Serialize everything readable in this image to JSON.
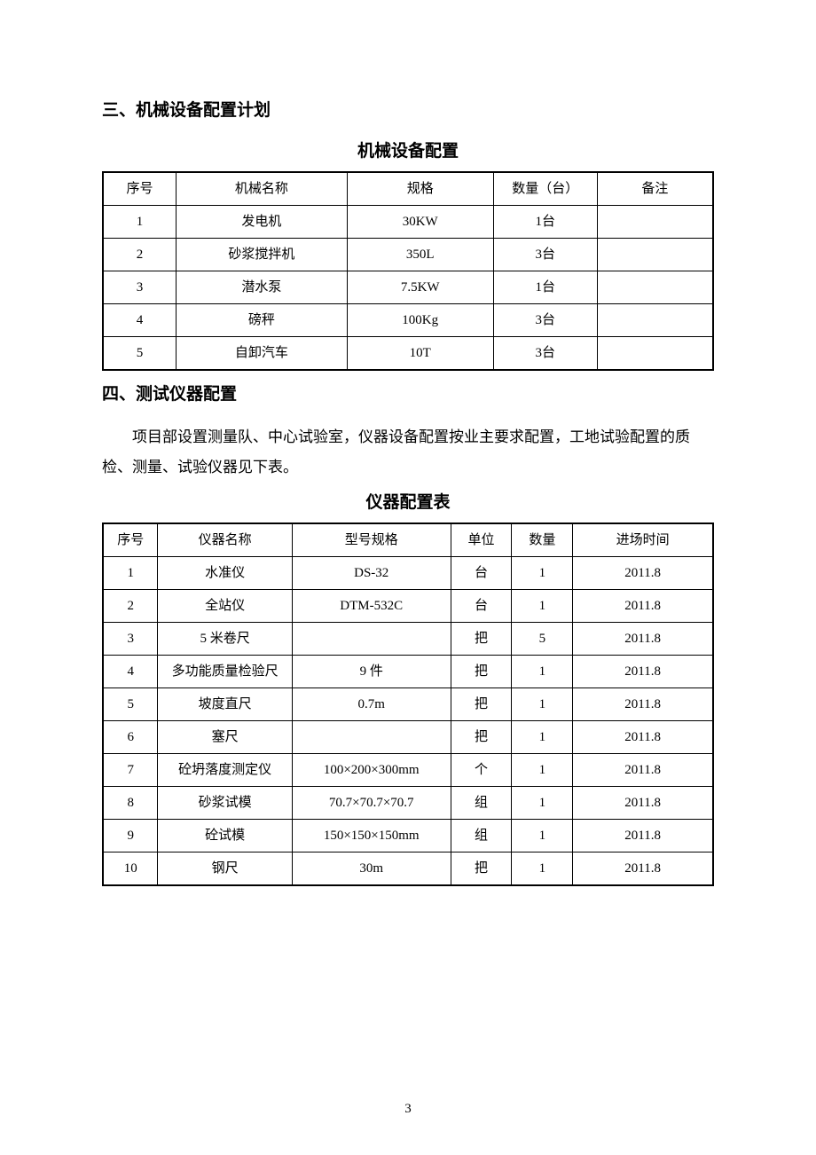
{
  "section3": {
    "heading": "三、机械设备配置计划",
    "table_title": "机械设备配置",
    "table": {
      "columns": [
        "序号",
        "机械名称",
        "规格",
        "数量（台）",
        "备注"
      ],
      "rows": [
        [
          "1",
          "发电机",
          "30KW",
          "1台",
          ""
        ],
        [
          "2",
          "砂浆搅拌机",
          "350L",
          "3台",
          ""
        ],
        [
          "3",
          "潜水泵",
          "7.5KW",
          "1台",
          ""
        ],
        [
          "4",
          "磅秤",
          "100Kg",
          "3台",
          ""
        ],
        [
          "5",
          "自卸汽车",
          "10T",
          "3台",
          ""
        ]
      ]
    }
  },
  "section4": {
    "heading": "四、测试仪器配置",
    "body": "项目部设置测量队、中心试验室，仪器设备配置按业主要求配置，工地试验配置的质检、测量、试验仪器见下表。",
    "table_title": "仪器配置表",
    "table": {
      "columns": [
        "序号",
        "仪器名称",
        "型号规格",
        "单位",
        "数量",
        "进场时间"
      ],
      "rows": [
        [
          "1",
          "水准仪",
          "DS-32",
          "台",
          "1",
          "2011.8"
        ],
        [
          "2",
          "全站仪",
          "DTM-532C",
          "台",
          "1",
          "2011.8"
        ],
        [
          "3",
          "5 米卷尺",
          "",
          "把",
          "5",
          "2011.8"
        ],
        [
          "4",
          "多功能质量检验尺",
          "9 件",
          "把",
          "1",
          "2011.8"
        ],
        [
          "5",
          "坡度直尺",
          "0.7m",
          "把",
          "1",
          "2011.8"
        ],
        [
          "6",
          "塞尺",
          "",
          "把",
          "1",
          "2011.8"
        ],
        [
          "7",
          "砼坍落度测定仪",
          "100×200×300mm",
          "个",
          "1",
          "2011.8"
        ],
        [
          "8",
          "砂浆试模",
          "70.7×70.7×70.7",
          "组",
          "1",
          "2011.8"
        ],
        [
          "9",
          "砼试模",
          "150×150×150mm",
          "组",
          "1",
          "2011.8"
        ],
        [
          "10",
          "钢尺",
          "30m",
          "把",
          "1",
          "2011.8"
        ]
      ]
    }
  },
  "page_number": "3",
  "styles": {
    "background_color": "#ffffff",
    "text_color": "#000000",
    "border_color": "#000000",
    "heading_fontsize": 19,
    "body_fontsize": 17,
    "cell_fontsize": 15,
    "outer_border_width": 2.5,
    "inner_border_width": 1,
    "table1_col_widths_pct": [
      12,
      28,
      24,
      17,
      19
    ],
    "table2_col_widths_pct": [
      9,
      22,
      26,
      10,
      10,
      23
    ]
  }
}
